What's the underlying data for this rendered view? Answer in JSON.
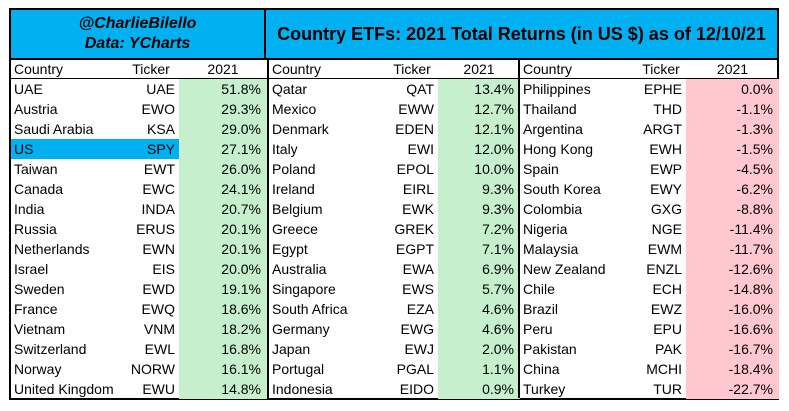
{
  "header": {
    "author": "@CharlieBilello",
    "source": "Data: YCharts",
    "title": "Country ETFs: 2021 Total Returns (in US $) as of 12/10/21"
  },
  "columns": {
    "country": "Country",
    "ticker": "Ticker",
    "year": "2021"
  },
  "colors": {
    "header_bg": "#00b0f0",
    "positive_bg": "#c6efce",
    "negative_bg": "#ffc7ce",
    "highlight_bg": "#00b0f0"
  },
  "highlighted_row": "US",
  "panels": [
    {
      "rows": [
        {
          "country": "UAE",
          "ticker": "UAE",
          "ret": "51.8%"
        },
        {
          "country": "Austria",
          "ticker": "EWO",
          "ret": "29.3%"
        },
        {
          "country": "Saudi Arabia",
          "ticker": "KSA",
          "ret": "29.0%"
        },
        {
          "country": "US",
          "ticker": "SPY",
          "ret": "27.1%"
        },
        {
          "country": "Taiwan",
          "ticker": "EWT",
          "ret": "26.0%"
        },
        {
          "country": "Canada",
          "ticker": "EWC",
          "ret": "24.1%"
        },
        {
          "country": "India",
          "ticker": "INDA",
          "ret": "20.7%"
        },
        {
          "country": "Russia",
          "ticker": "ERUS",
          "ret": "20.1%"
        },
        {
          "country": "Netherlands",
          "ticker": "EWN",
          "ret": "20.1%"
        },
        {
          "country": "Israel",
          "ticker": "EIS",
          "ret": "20.0%"
        },
        {
          "country": "Sweden",
          "ticker": "EWD",
          "ret": "19.1%"
        },
        {
          "country": "France",
          "ticker": "EWQ",
          "ret": "18.6%"
        },
        {
          "country": "Vietnam",
          "ticker": "VNM",
          "ret": "18.2%"
        },
        {
          "country": "Switzerland",
          "ticker": "EWL",
          "ret": "16.8%"
        },
        {
          "country": "Norway",
          "ticker": "NORW",
          "ret": "16.1%"
        },
        {
          "country": "United Kingdom",
          "ticker": "EWU",
          "ret": "14.8%"
        }
      ]
    },
    {
      "rows": [
        {
          "country": "Qatar",
          "ticker": "QAT",
          "ret": "13.4%"
        },
        {
          "country": "Mexico",
          "ticker": "EWW",
          "ret": "12.7%"
        },
        {
          "country": "Denmark",
          "ticker": "EDEN",
          "ret": "12.1%"
        },
        {
          "country": "Italy",
          "ticker": "EWI",
          "ret": "12.0%"
        },
        {
          "country": "Poland",
          "ticker": "EPOL",
          "ret": "10.0%"
        },
        {
          "country": "Ireland",
          "ticker": "EIRL",
          "ret": "9.3%"
        },
        {
          "country": "Belgium",
          "ticker": "EWK",
          "ret": "9.3%"
        },
        {
          "country": "Greece",
          "ticker": "GREK",
          "ret": "7.2%"
        },
        {
          "country": "Egypt",
          "ticker": "EGPT",
          "ret": "7.1%"
        },
        {
          "country": "Australia",
          "ticker": "EWA",
          "ret": "6.9%"
        },
        {
          "country": "Singapore",
          "ticker": "EWS",
          "ret": "5.7%"
        },
        {
          "country": "South Africa",
          "ticker": "EZA",
          "ret": "4.6%"
        },
        {
          "country": "Germany",
          "ticker": "EWG",
          "ret": "4.6%"
        },
        {
          "country": "Japan",
          "ticker": "EWJ",
          "ret": "2.0%"
        },
        {
          "country": "Portugal",
          "ticker": "PGAL",
          "ret": "1.1%"
        },
        {
          "country": "Indonesia",
          "ticker": "EIDO",
          "ret": "0.9%"
        }
      ]
    },
    {
      "rows": [
        {
          "country": "Philippines",
          "ticker": "EPHE",
          "ret": "0.0%"
        },
        {
          "country": "Thailand",
          "ticker": "THD",
          "ret": "-1.1%"
        },
        {
          "country": "Argentina",
          "ticker": "ARGT",
          "ret": "-1.3%"
        },
        {
          "country": "Hong Kong",
          "ticker": "EWH",
          "ret": "-1.5%"
        },
        {
          "country": "Spain",
          "ticker": "EWP",
          "ret": "-4.5%"
        },
        {
          "country": "South Korea",
          "ticker": "EWY",
          "ret": "-6.2%"
        },
        {
          "country": "Colombia",
          "ticker": "GXG",
          "ret": "-8.8%"
        },
        {
          "country": "Nigeria",
          "ticker": "NGE",
          "ret": "-11.4%"
        },
        {
          "country": "Malaysia",
          "ticker": "EWM",
          "ret": "-11.7%"
        },
        {
          "country": "New Zealand",
          "ticker": "ENZL",
          "ret": "-12.6%"
        },
        {
          "country": "Chile",
          "ticker": "ECH",
          "ret": "-14.8%"
        },
        {
          "country": "Brazil",
          "ticker": "EWZ",
          "ret": "-16.0%"
        },
        {
          "country": "Peru",
          "ticker": "EPU",
          "ret": "-16.6%"
        },
        {
          "country": "Pakistan",
          "ticker": "PAK",
          "ret": "-16.7%"
        },
        {
          "country": "China",
          "ticker": "MCHI",
          "ret": "-18.4%"
        },
        {
          "country": "Turkey",
          "ticker": "TUR",
          "ret": "-22.7%"
        }
      ]
    }
  ]
}
